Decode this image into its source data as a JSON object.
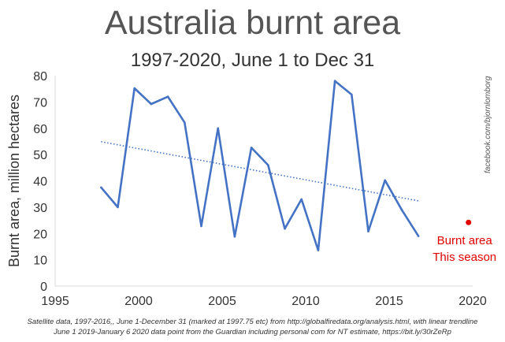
{
  "chart_data": {
    "type": "line",
    "title": "Australia burnt area",
    "subtitle": "1997-2020, June 1 to Dec 31",
    "ylabel": "Burnt area, million hectares",
    "xlabel": "",
    "xlim": [
      1995,
      2020
    ],
    "ylim": [
      0,
      80
    ],
    "xticks": [
      1995,
      2000,
      2005,
      2010,
      2015,
      2020
    ],
    "yticks": [
      0,
      10,
      20,
      30,
      40,
      50,
      60,
      70,
      80
    ],
    "grid": false,
    "series": [
      {
        "color": "#4472c4",
        "x": [
          1997.75,
          1998.75,
          1999.75,
          2000.75,
          2001.75,
          2002.75,
          2003.75,
          2004.75,
          2005.75,
          2006.75,
          2007.75,
          2008.75,
          2009.75,
          2010.75,
          2011.75,
          2012.75,
          2013.75,
          2014.75,
          2015.75,
          2016.75
        ],
        "y": [
          37.5,
          30,
          75.2,
          69.2,
          72,
          62.2,
          22.8,
          60,
          18.8,
          52.6,
          46,
          21.8,
          33,
          13.6,
          78,
          72.8,
          20.8,
          40.2,
          29,
          19
        ]
      }
    ],
    "trendline": {
      "style": "dotted",
      "color": "#4472c4",
      "x": [
        1997.75,
        2016.75
      ],
      "y": [
        54.9,
        32.4
      ]
    },
    "highlight_point": {
      "x": 2019.75,
      "y": 24.2,
      "color": "#e00000",
      "label_lines": [
        "Burnt area",
        "This season"
      ]
    },
    "side_credit": "facebook.com/bjornlomborg",
    "footnotes": [
      "Satellite data, 1997-2016,, June 1-December 31 (marked at 1997.75 etc) from http://globalfiredata.org/analysis.html, with linear trendline",
      "June 1 2019-January 6 2020 data point from the Guardian including personal com for NT estimate, https://bit.ly/30rZeRp"
    ]
  }
}
